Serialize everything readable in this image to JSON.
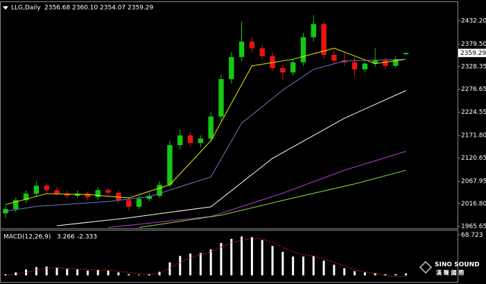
{
  "chart_data": {
    "type": "candlestick",
    "title": "LLG,Daily",
    "last_labels": [
      "2356.68",
      "2360.10",
      "2354.07",
      "2359.29"
    ],
    "xlim": [
      -0.2,
      39.3
    ],
    "ylim": [
      1960.9,
      2471.6
    ],
    "yticks": [
      {
        "value": 2432.2,
        "label": "2432.20"
      },
      {
        "value": 2379.5,
        "label": "2379.50"
      },
      2328.35,
      2276.65,
      2224.55,
      {
        "value": 2171.8,
        "label": "2171.80"
      },
      2120.65,
      2067.95,
      {
        "value": 2016.8,
        "label": "2016.80"
      },
      1965.65
    ],
    "grid": false,
    "up_color": "#14c814",
    "down_color": "#e81414",
    "open": [
      1995,
      2005,
      2025,
      2040,
      2058,
      2048,
      2040,
      2035,
      2040,
      2032,
      2048,
      2042,
      2025,
      2010,
      2028,
      2035,
      2060,
      2150,
      2172,
      2155,
      2165,
      2215,
      2300,
      2350,
      2385,
      2370,
      2352,
      2325,
      2315,
      2338,
      2395,
      2425,
      2355,
      2342,
      2338,
      2322,
      2335,
      2342,
      2330,
      2356.68
    ],
    "high": [
      2013,
      2032,
      2048,
      2068,
      2064,
      2055,
      2046,
      2047,
      2045,
      2055,
      2053,
      2048,
      2030,
      2035,
      2042,
      2068,
      2160,
      2185,
      2180,
      2172,
      2225,
      2310,
      2362,
      2430,
      2395,
      2378,
      2360,
      2332,
      2345,
      2405,
      2445,
      2430,
      2365,
      2360,
      2350,
      2340,
      2370,
      2350,
      2352,
      2360.1
    ],
    "low": [
      1985,
      1998,
      2018,
      2033,
      2042,
      2035,
      2028,
      2030,
      2025,
      2026,
      2036,
      2018,
      2002,
      2005,
      2022,
      2030,
      2055,
      2140,
      2148,
      2145,
      2158,
      2205,
      2290,
      2340,
      2360,
      2345,
      2318,
      2298,
      2308,
      2330,
      2385,
      2345,
      2335,
      2330,
      2305,
      2315,
      2328,
      2322,
      2325,
      2354.07
    ],
    "close": [
      2005,
      2025,
      2040,
      2058,
      2048,
      2040,
      2035,
      2040,
      2032,
      2048,
      2042,
      2025,
      2010,
      2028,
      2035,
      2060,
      2150,
      2172,
      2155,
      2165,
      2215,
      2300,
      2350,
      2385,
      2370,
      2352,
      2325,
      2315,
      2338,
      2395,
      2425,
      2355,
      2342,
      2338,
      2322,
      2335,
      2342,
      2330,
      2345,
      2359.29
    ],
    "lines": [
      {
        "color": "#f0f000",
        "x": [
          0,
          4,
          8,
          12,
          16,
          20,
          24,
          28,
          32,
          36,
          39
        ],
        "values": [
          2015,
          2040,
          2038,
          2030,
          2060,
          2160,
          2330,
          2345,
          2370,
          2335,
          2345
        ]
      },
      {
        "color": "#6a7fc8",
        "x": [
          0,
          3,
          10,
          14,
          20,
          23,
          27,
          30,
          33,
          39
        ],
        "values": [
          2000,
          2011,
          2022,
          2033,
          2078,
          2200,
          2275,
          2322,
          2341,
          2345
        ]
      },
      {
        "color": "#ffffff",
        "x": [
          5,
          12,
          20,
          26,
          33,
          39
        ],
        "values": [
          1967,
          1985,
          2010,
          2120,
          2211,
          2274
        ]
      },
      {
        "color": "#c040e0",
        "x": [
          10,
          20,
          27,
          33,
          39
        ],
        "values": [
          1963,
          1988,
          2041,
          2093,
          2136
        ]
      },
      {
        "color": "#90e040",
        "x": [
          13,
          21,
          28,
          34,
          39
        ],
        "values": [
          1963,
          1991,
          2030,
          2062,
          2093
        ]
      }
    ],
    "macd": {
      "title": "MACD(12,26,9)",
      "color": "#ffffff",
      "signal_color": "#ff2020",
      "ylim": [
        -10,
        75
      ],
      "yticks": [
        68.723
      ],
      "values": [
        2,
        5,
        10,
        14,
        15,
        13,
        11,
        10,
        8,
        9,
        8,
        5,
        2,
        1,
        2,
        6,
        22,
        33,
        37,
        38,
        44,
        55,
        62,
        66,
        65,
        60,
        50,
        40,
        32,
        32,
        33,
        25,
        18,
        12,
        7,
        5,
        4,
        2,
        2,
        3.266
      ],
      "signal": [
        0,
        2,
        5,
        9,
        12,
        13,
        12,
        11,
        10,
        9,
        9,
        7,
        5,
        3,
        2,
        3,
        12,
        22,
        30,
        35,
        40,
        48,
        55,
        60,
        63,
        62,
        56,
        48,
        40,
        35,
        33,
        28,
        22,
        16,
        10,
        6,
        3,
        0,
        -2,
        -2.333
      ]
    },
    "watermark": {
      "name": "SINO SOUND",
      "subtitle": "漢 聲 國 際"
    }
  }
}
